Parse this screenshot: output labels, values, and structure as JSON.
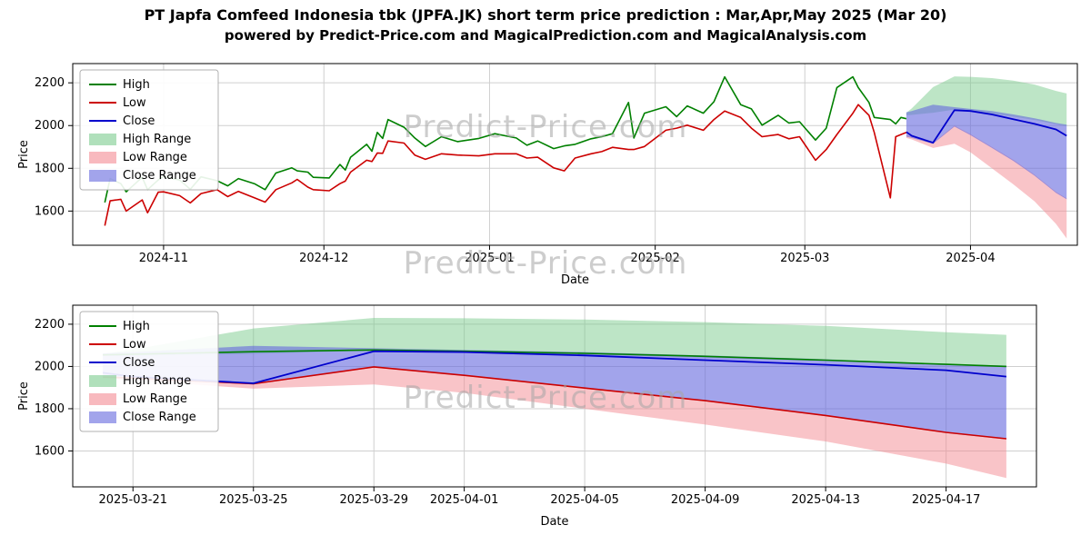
{
  "title": "PT Japfa Comfeed Indonesia tbk (JPFA.JK) short term price prediction : Mar,Apr,May 2025 (Mar 20)",
  "subtitle": "powered by Predict-Price.com and MagicalPrediction.com and MagicalAnalysis.com",
  "watermark": "Predict-Price.com",
  "colors": {
    "high_line": "#008000",
    "low_line": "#cc0000",
    "close_line": "#0000cc",
    "high_band": "#7ccb8e",
    "low_band": "#f48a92",
    "close_band": "#6468dd",
    "grid": "#cfcfcf",
    "spine": "#000000"
  },
  "chart_data": [
    {
      "id": "overview",
      "type": "line",
      "xlabel": "Date",
      "ylabel": "Price",
      "ylim": [
        1440,
        2290
      ],
      "xdomain": [
        "2024-10-15",
        "2025-04-21"
      ],
      "yticks": [
        1600,
        1800,
        2000,
        2200
      ],
      "xticks": [
        {
          "pos": "2024-11-01",
          "label": "2024-11"
        },
        {
          "pos": "2024-12-01",
          "label": "2024-12"
        },
        {
          "pos": "2025-01-01",
          "label": "2025-01"
        },
        {
          "pos": "2025-02-01",
          "label": "2025-02"
        },
        {
          "pos": "2025-03-01",
          "label": "2025-03"
        },
        {
          "pos": "2025-04-01",
          "label": "2025-04"
        }
      ],
      "legend": [
        {
          "label": "High",
          "type": "line",
          "color": "#008000"
        },
        {
          "label": "Low",
          "type": "line",
          "color": "#cc0000"
        },
        {
          "label": "Close",
          "type": "line",
          "color": "#0000cc"
        },
        {
          "label": "High Range",
          "type": "patch",
          "color": "#7ccb8e"
        },
        {
          "label": "Low Range",
          "type": "patch",
          "color": "#f48a92"
        },
        {
          "label": "Close Range",
          "type": "patch",
          "color": "#6468dd"
        }
      ],
      "bands": [
        {
          "name": "High Range",
          "color": "#7ccb8e",
          "opacity": 0.5,
          "x": [
            "2025-03-20",
            "2025-03-21",
            "2025-03-25",
            "2025-03-29",
            "2025-04-01",
            "2025-04-05",
            "2025-04-09",
            "2025-04-13",
            "2025-04-17",
            "2025-04-19"
          ],
          "upper": [
            2060,
            2080,
            2180,
            2230,
            2228,
            2222,
            2210,
            2192,
            2162,
            2150
          ],
          "lower": [
            2048,
            2050,
            2060,
            2075,
            2068,
            2056,
            2042,
            2026,
            2006,
            1998
          ]
        },
        {
          "name": "Low Range",
          "color": "#f48a92",
          "opacity": 0.5,
          "x": [
            "2025-03-20",
            "2025-03-21",
            "2025-03-25",
            "2025-03-29",
            "2025-04-01",
            "2025-04-05",
            "2025-04-09",
            "2025-04-13",
            "2025-04-17",
            "2025-04-19"
          ],
          "upper": [
            1955,
            1950,
            1920,
            2000,
            1960,
            1900,
            1840,
            1770,
            1690,
            1660
          ],
          "lower": [
            1942,
            1935,
            1895,
            1915,
            1875,
            1800,
            1725,
            1645,
            1540,
            1472
          ]
        },
        {
          "name": "Close Range",
          "color": "#6468dd",
          "opacity": 0.6,
          "x": [
            "2025-03-20",
            "2025-03-21",
            "2025-03-25",
            "2025-03-29",
            "2025-04-01",
            "2025-04-05",
            "2025-04-09",
            "2025-04-13",
            "2025-04-17",
            "2025-04-19"
          ],
          "upper": [
            2062,
            2068,
            2098,
            2086,
            2078,
            2068,
            2052,
            2034,
            2012,
            2004
          ],
          "lower": [
            1948,
            1942,
            1915,
            1995,
            1955,
            1895,
            1835,
            1765,
            1685,
            1655
          ]
        }
      ],
      "series": [
        {
          "name": "High",
          "color": "#008000",
          "width": 1.6,
          "x": [
            "2024-10-21",
            "2024-10-22",
            "2024-10-24",
            "2024-10-25",
            "2024-10-28",
            "2024-10-29",
            "2024-10-31",
            "2024-11-01",
            "2024-11-04",
            "2024-11-06",
            "2024-11-08",
            "2024-11-11",
            "2024-11-13",
            "2024-11-15",
            "2024-11-18",
            "2024-11-20",
            "2024-11-22",
            "2024-11-25",
            "2024-11-26",
            "2024-11-28",
            "2024-11-29",
            "2024-12-02",
            "2024-12-04",
            "2024-12-05",
            "2024-12-06",
            "2024-12-09",
            "2024-12-10",
            "2024-12-11",
            "2024-12-12",
            "2024-12-13",
            "2024-12-16",
            "2024-12-18",
            "2024-12-20",
            "2024-12-23",
            "2024-12-26",
            "2024-12-30",
            "2025-01-02",
            "2025-01-06",
            "2025-01-08",
            "2025-01-10",
            "2025-01-13",
            "2025-01-15",
            "2025-01-17",
            "2025-01-20",
            "2025-01-22",
            "2025-01-24",
            "2025-01-27",
            "2025-01-28",
            "2025-01-30",
            "2025-02-03",
            "2025-02-05",
            "2025-02-07",
            "2025-02-10",
            "2025-02-12",
            "2025-02-14",
            "2025-02-17",
            "2025-02-19",
            "2025-02-21",
            "2025-02-24",
            "2025-02-26",
            "2025-02-28",
            "2025-03-03",
            "2025-03-05",
            "2025-03-07",
            "2025-03-10",
            "2025-03-11",
            "2025-03-13",
            "2025-03-14",
            "2025-03-17",
            "2025-03-18",
            "2025-03-19",
            "2025-03-20"
          ],
          "y": [
            1640,
            1752,
            1728,
            1690,
            1758,
            1700,
            1745,
            1762,
            1745,
            1702,
            1760,
            1742,
            1718,
            1752,
            1728,
            1700,
            1778,
            1802,
            1788,
            1782,
            1758,
            1755,
            1818,
            1792,
            1852,
            1912,
            1880,
            1968,
            1940,
            2028,
            1992,
            1942,
            1902,
            1948,
            1925,
            1940,
            1962,
            1942,
            1908,
            1928,
            1892,
            1905,
            1912,
            1938,
            1948,
            1962,
            2108,
            1942,
            2058,
            2088,
            2042,
            2092,
            2058,
            2112,
            2228,
            2098,
            2078,
            2002,
            2048,
            2012,
            2018,
            1932,
            1988,
            2178,
            2228,
            2178,
            2108,
            2038,
            2028,
            2008,
            2038,
            2032
          ]
        },
        {
          "name": "Low",
          "color": "#cc0000",
          "width": 1.6,
          "x": [
            "2024-10-21",
            "2024-10-22",
            "2024-10-24",
            "2024-10-25",
            "2024-10-28",
            "2024-10-29",
            "2024-10-31",
            "2024-11-01",
            "2024-11-04",
            "2024-11-06",
            "2024-11-08",
            "2024-11-11",
            "2024-11-13",
            "2024-11-15",
            "2024-11-18",
            "2024-11-20",
            "2024-11-22",
            "2024-11-25",
            "2024-11-26",
            "2024-11-28",
            "2024-11-29",
            "2024-12-02",
            "2024-12-04",
            "2024-12-05",
            "2024-12-06",
            "2024-12-09",
            "2024-12-10",
            "2024-12-11",
            "2024-12-12",
            "2024-12-13",
            "2024-12-16",
            "2024-12-18",
            "2024-12-20",
            "2024-12-23",
            "2024-12-26",
            "2024-12-30",
            "2025-01-02",
            "2025-01-06",
            "2025-01-08",
            "2025-01-10",
            "2025-01-13",
            "2025-01-15",
            "2025-01-17",
            "2025-01-20",
            "2025-01-22",
            "2025-01-24",
            "2025-01-27",
            "2025-01-28",
            "2025-01-30",
            "2025-02-03",
            "2025-02-05",
            "2025-02-07",
            "2025-02-10",
            "2025-02-12",
            "2025-02-14",
            "2025-02-17",
            "2025-02-19",
            "2025-02-21",
            "2025-02-24",
            "2025-02-26",
            "2025-02-28",
            "2025-03-03",
            "2025-03-05",
            "2025-03-07",
            "2025-03-10",
            "2025-03-11",
            "2025-03-13",
            "2025-03-14",
            "2025-03-17",
            "2025-03-18",
            "2025-03-19",
            "2025-03-20"
          ],
          "y": [
            1532,
            1648,
            1655,
            1600,
            1652,
            1592,
            1688,
            1690,
            1672,
            1638,
            1682,
            1700,
            1668,
            1692,
            1662,
            1642,
            1700,
            1732,
            1748,
            1712,
            1700,
            1695,
            1728,
            1740,
            1782,
            1838,
            1832,
            1872,
            1870,
            1928,
            1918,
            1862,
            1842,
            1868,
            1862,
            1858,
            1868,
            1868,
            1848,
            1852,
            1802,
            1788,
            1848,
            1868,
            1878,
            1898,
            1888,
            1888,
            1902,
            1978,
            1988,
            2002,
            1978,
            2028,
            2068,
            2038,
            1988,
            1948,
            1958,
            1938,
            1948,
            1838,
            1888,
            1958,
            2058,
            2098,
            2048,
            1968,
            1662,
            1948,
            1958,
            1968
          ]
        },
        {
          "name": "Close",
          "color": "#0000cc",
          "width": 1.8,
          "x": [
            "2025-03-20",
            "2025-03-21",
            "2025-03-25",
            "2025-03-29",
            "2025-04-01",
            "2025-04-05",
            "2025-04-09",
            "2025-04-13",
            "2025-04-17",
            "2025-04-19"
          ],
          "y": [
            1970,
            1952,
            1920,
            2072,
            2068,
            2052,
            2030,
            2008,
            1982,
            1952
          ]
        }
      ]
    },
    {
      "id": "forecast-detail",
      "type": "line",
      "xlabel": "Date",
      "ylabel": "Price",
      "ylim": [
        1430,
        2290
      ],
      "xdomain": [
        "2025-03-19",
        "2025-04-20"
      ],
      "yticks": [
        1600,
        1800,
        2000,
        2200
      ],
      "xticks": [
        {
          "pos": "2025-03-21",
          "label": "2025-03-21"
        },
        {
          "pos": "2025-03-25",
          "label": "2025-03-25"
        },
        {
          "pos": "2025-03-29",
          "label": "2025-03-29"
        },
        {
          "pos": "2025-04-01",
          "label": "2025-04-01"
        },
        {
          "pos": "2025-04-05",
          "label": "2025-04-05"
        },
        {
          "pos": "2025-04-09",
          "label": "2025-04-09"
        },
        {
          "pos": "2025-04-13",
          "label": "2025-04-13"
        },
        {
          "pos": "2025-04-17",
          "label": "2025-04-17"
        }
      ],
      "legend": [
        {
          "label": "High",
          "type": "line",
          "color": "#008000"
        },
        {
          "label": "Low",
          "type": "line",
          "color": "#cc0000"
        },
        {
          "label": "Close",
          "type": "line",
          "color": "#0000cc"
        },
        {
          "label": "High Range",
          "type": "patch",
          "color": "#7ccb8e"
        },
        {
          "label": "Low Range",
          "type": "patch",
          "color": "#f48a92"
        },
        {
          "label": "Close Range",
          "type": "patch",
          "color": "#6468dd"
        }
      ],
      "bands": [
        {
          "name": "High Range",
          "color": "#7ccb8e",
          "opacity": 0.5,
          "x": [
            "2025-03-20",
            "2025-03-21",
            "2025-03-25",
            "2025-03-29",
            "2025-04-01",
            "2025-04-05",
            "2025-04-09",
            "2025-04-13",
            "2025-04-17",
            "2025-04-19"
          ],
          "upper": [
            2060,
            2080,
            2180,
            2230,
            2228,
            2222,
            2210,
            2192,
            2162,
            2150
          ],
          "lower": [
            2048,
            2050,
            2060,
            2075,
            2068,
            2056,
            2042,
            2026,
            2006,
            1998
          ]
        },
        {
          "name": "Low Range",
          "color": "#f48a92",
          "opacity": 0.5,
          "x": [
            "2025-03-20",
            "2025-03-21",
            "2025-03-25",
            "2025-03-29",
            "2025-04-01",
            "2025-04-05",
            "2025-04-09",
            "2025-04-13",
            "2025-04-17",
            "2025-04-19"
          ],
          "upper": [
            1955,
            1950,
            1920,
            2000,
            1960,
            1900,
            1840,
            1770,
            1690,
            1660
          ],
          "lower": [
            1942,
            1935,
            1895,
            1915,
            1875,
            1800,
            1725,
            1645,
            1540,
            1472
          ]
        },
        {
          "name": "Close Range",
          "color": "#6468dd",
          "opacity": 0.6,
          "x": [
            "2025-03-20",
            "2025-03-21",
            "2025-03-25",
            "2025-03-29",
            "2025-04-01",
            "2025-04-05",
            "2025-04-09",
            "2025-04-13",
            "2025-04-17",
            "2025-04-19"
          ],
          "upper": [
            2062,
            2068,
            2098,
            2086,
            2078,
            2068,
            2052,
            2034,
            2012,
            2004
          ],
          "lower": [
            1948,
            1942,
            1915,
            1995,
            1955,
            1895,
            1835,
            1765,
            1685,
            1655
          ]
        }
      ],
      "series": [
        {
          "name": "High",
          "color": "#008000",
          "width": 1.6,
          "x": [
            "2025-03-20",
            "2025-03-21",
            "2025-03-25",
            "2025-03-29",
            "2025-04-01",
            "2025-04-05",
            "2025-04-09",
            "2025-04-13",
            "2025-04-17",
            "2025-04-19"
          ],
          "y": [
            2055,
            2058,
            2070,
            2078,
            2072,
            2062,
            2048,
            2030,
            2010,
            2000
          ]
        },
        {
          "name": "Low",
          "color": "#cc0000",
          "width": 1.6,
          "x": [
            "2025-03-20",
            "2025-03-21",
            "2025-03-25",
            "2025-03-29",
            "2025-04-01",
            "2025-04-05",
            "2025-04-09",
            "2025-04-13",
            "2025-04-17",
            "2025-04-19"
          ],
          "y": [
            1950,
            1945,
            1918,
            1998,
            1958,
            1898,
            1838,
            1768,
            1688,
            1658
          ]
        },
        {
          "name": "Close",
          "color": "#0000cc",
          "width": 1.8,
          "x": [
            "2025-03-20",
            "2025-03-21",
            "2025-03-25",
            "2025-03-29",
            "2025-04-01",
            "2025-04-05",
            "2025-04-09",
            "2025-04-13",
            "2025-04-17",
            "2025-04-19"
          ],
          "y": [
            1970,
            1952,
            1920,
            2072,
            2068,
            2052,
            2030,
            2008,
            1982,
            1952
          ]
        }
      ]
    }
  ]
}
